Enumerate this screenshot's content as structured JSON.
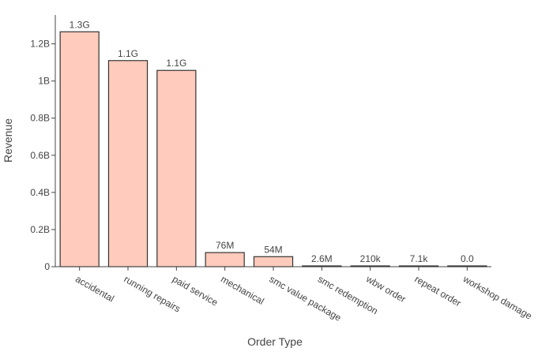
{
  "chart_data": {
    "type": "bar",
    "xlabel": "Order Type",
    "ylabel": "Revenue",
    "ylim": [
      0,
      1330000000
    ],
    "y_ticks": [
      {
        "value": 0,
        "label": "0"
      },
      {
        "value": 200000000,
        "label": "0.2B"
      },
      {
        "value": 400000000,
        "label": "0.4B"
      },
      {
        "value": 600000000,
        "label": "0.6B"
      },
      {
        "value": 800000000,
        "label": "0.8B"
      },
      {
        "value": 1000000000,
        "label": "1B"
      },
      {
        "value": 1200000000,
        "label": "1.2B"
      }
    ],
    "grid": false,
    "categories": [
      "accidental",
      "running repairs",
      "paid service",
      "mechanical",
      "smc value package",
      "smc redemption",
      "wbw order",
      "repeat order",
      "workshop damage"
    ],
    "values": [
      1265000000,
      1110000000,
      1057000000,
      76000000,
      54000000,
      2600000,
      210000,
      7100,
      0
    ],
    "data_labels": [
      "1.3G",
      "1.1G",
      "1.1G",
      "76M",
      "54M",
      "2.6M",
      "210k",
      "7.1k",
      "0.0"
    ],
    "colors": {
      "bar_fill": "#ffcbbc",
      "bar_stroke": "#333333",
      "axis": "#444444",
      "text": "#444444"
    }
  }
}
